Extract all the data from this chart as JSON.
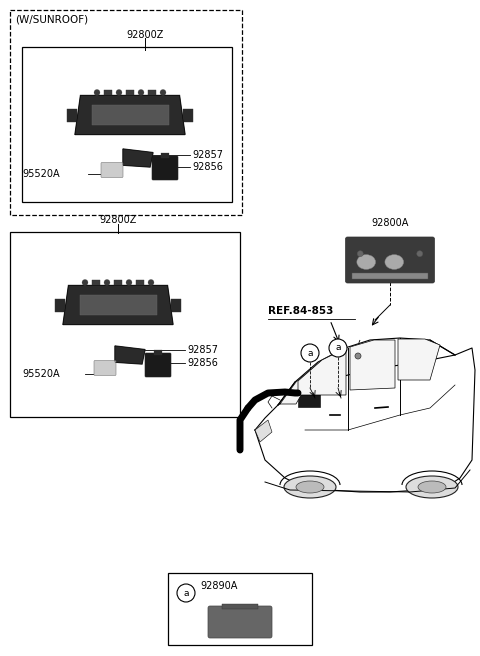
{
  "bg_color": "#ffffff",
  "text_color": "#000000",
  "parts": {
    "sunroof_label": "(W/SUNROOF)",
    "part_92800Z_top": "92800Z",
    "part_92800Z_bottom": "92800Z",
    "part_92800A": "92800A",
    "part_92857_top": "92857",
    "part_92856_top": "92856",
    "part_95520A_top": "95520A",
    "part_92857_bot": "92857",
    "part_92856_bot": "92856",
    "part_95520A_bot": "95520A",
    "ref_label": "REF.84-853",
    "part_92890A": "92890A",
    "circle_a": "a"
  },
  "font_sizes": {
    "label": 7.5,
    "part": 7.0,
    "ref": 7.5,
    "sunroof": 7.5
  }
}
